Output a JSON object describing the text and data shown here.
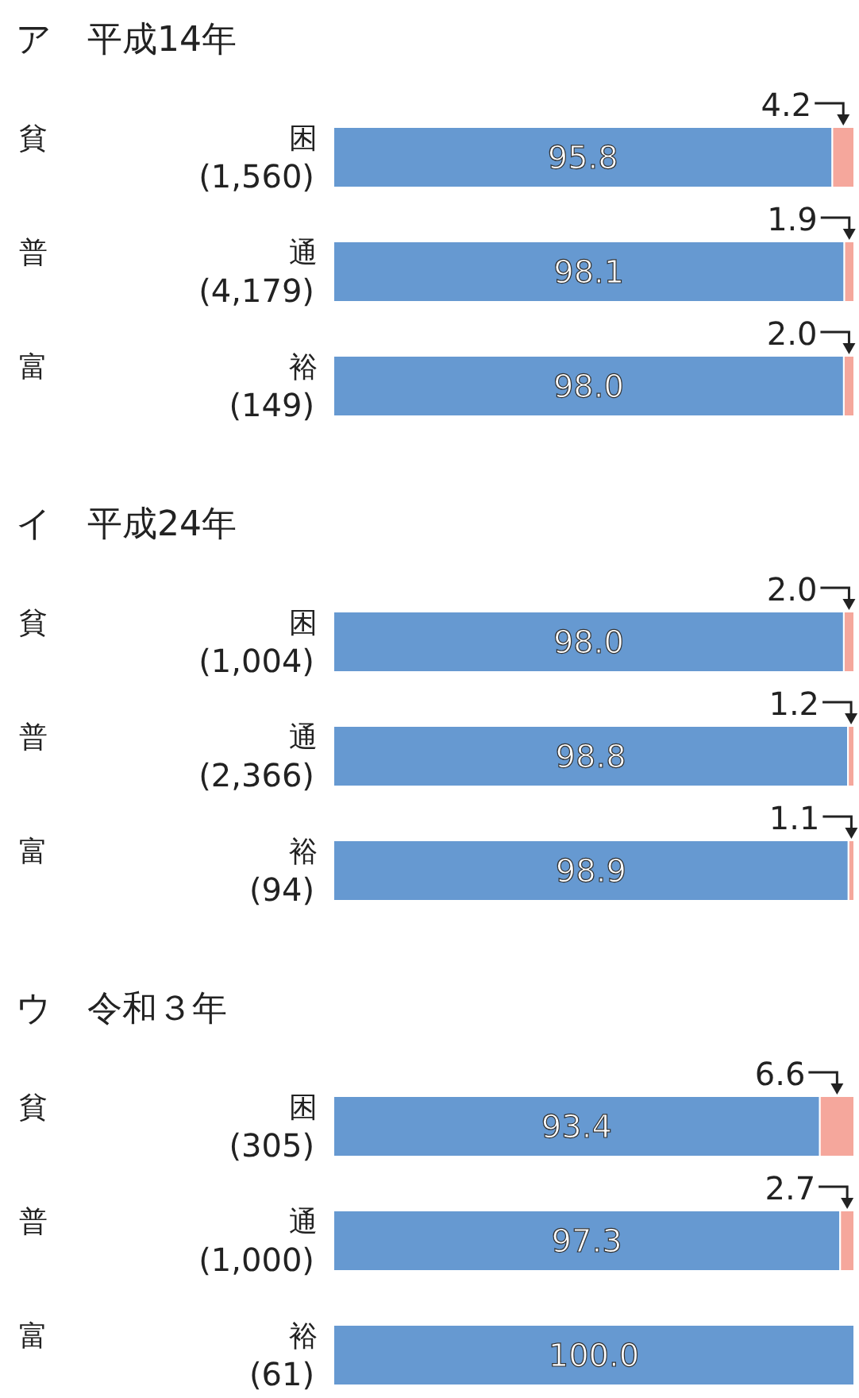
{
  "chart_data": [
    {
      "type": "bar",
      "orientation": "horizontal",
      "stacked": true,
      "title": "ア　平成14年",
      "categories": [
        "貧困\n(1,560)",
        "普通\n(4,179)",
        "富裕\n(149)"
      ],
      "series": [
        {
          "color": "#6699d1",
          "values": [
            95.8,
            98.1,
            98.0
          ],
          "value_labels": [
            "95.8",
            "98.1",
            "98.0"
          ]
        },
        {
          "color": "#f5a79c",
          "values": [
            4.2,
            1.9,
            2.0
          ],
          "value_labels": [
            "4.2",
            "1.9",
            "2.0"
          ]
        }
      ]
    },
    {
      "type": "bar",
      "orientation": "horizontal",
      "stacked": true,
      "title": "イ　平成24年",
      "categories": [
        "貧困\n(1,004)",
        "普通\n(2,366)",
        "富裕\n(94)"
      ],
      "series": [
        {
          "color": "#6699d1",
          "values": [
            98.0,
            98.8,
            98.9
          ],
          "value_labels": [
            "98.0",
            "98.8",
            "98.9"
          ]
        },
        {
          "color": "#f5a79c",
          "values": [
            2.0,
            1.2,
            1.1
          ],
          "value_labels": [
            "2.0",
            "1.2",
            "1.1"
          ]
        }
      ]
    },
    {
      "type": "bar",
      "orientation": "horizontal",
      "stacked": true,
      "title": "ウ　令和３年",
      "categories": [
        "貧困\n(305)",
        "普通\n(1,000)",
        "富裕\n(61)"
      ],
      "series": [
        {
          "color": "#6699d1",
          "values": [
            93.4,
            97.3,
            100.0
          ],
          "value_labels": [
            "93.4",
            "97.3",
            "100.0"
          ]
        },
        {
          "color": "#f5a79c",
          "values": [
            6.6,
            2.7,
            0
          ],
          "value_labels": [
            "6.6",
            "2.7",
            null
          ]
        }
      ]
    }
  ]
}
